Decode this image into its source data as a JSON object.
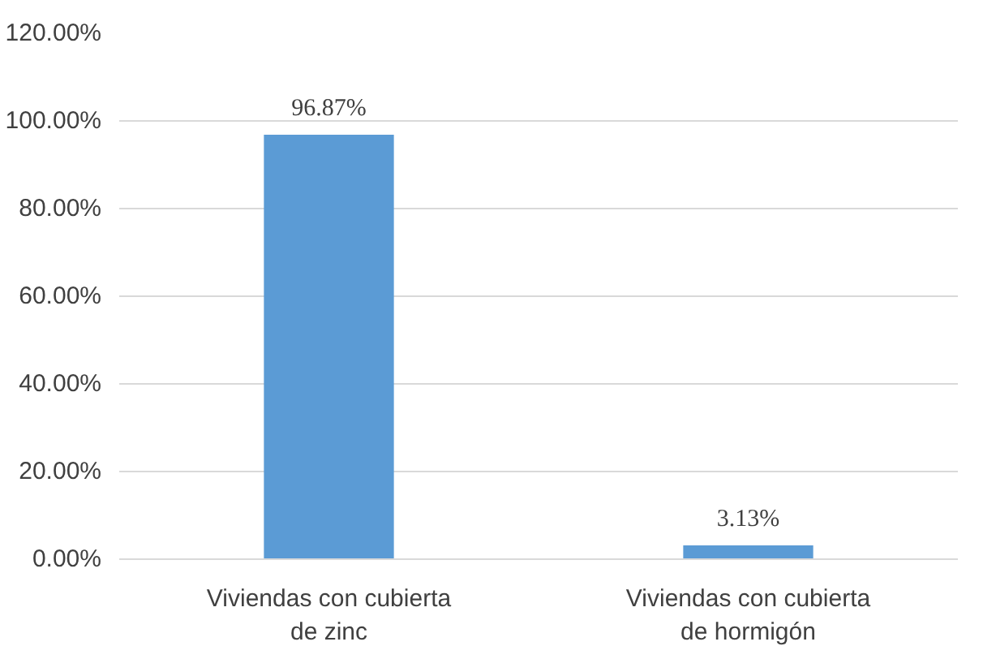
{
  "chart_data": {
    "type": "bar",
    "categories": [
      "Viviendas con cubierta de zinc",
      "Viviendas con cubierta de hormigón"
    ],
    "values": [
      96.87,
      3.13
    ],
    "value_labels": [
      "96.87%",
      "3.13%"
    ],
    "color": "#5b9bd5",
    "ylim": [
      0,
      120
    ],
    "yticks": [
      {
        "value": 0,
        "label": "0.00%"
      },
      {
        "value": 20,
        "label": "20.00%"
      },
      {
        "value": 40,
        "label": "40.00%"
      },
      {
        "value": 60,
        "label": "60.00%"
      },
      {
        "value": 80,
        "label": "80.00%"
      },
      {
        "value": 100,
        "label": "100.00%"
      },
      {
        "value": 120,
        "label": "120.00%"
      }
    ],
    "grid": "y"
  }
}
